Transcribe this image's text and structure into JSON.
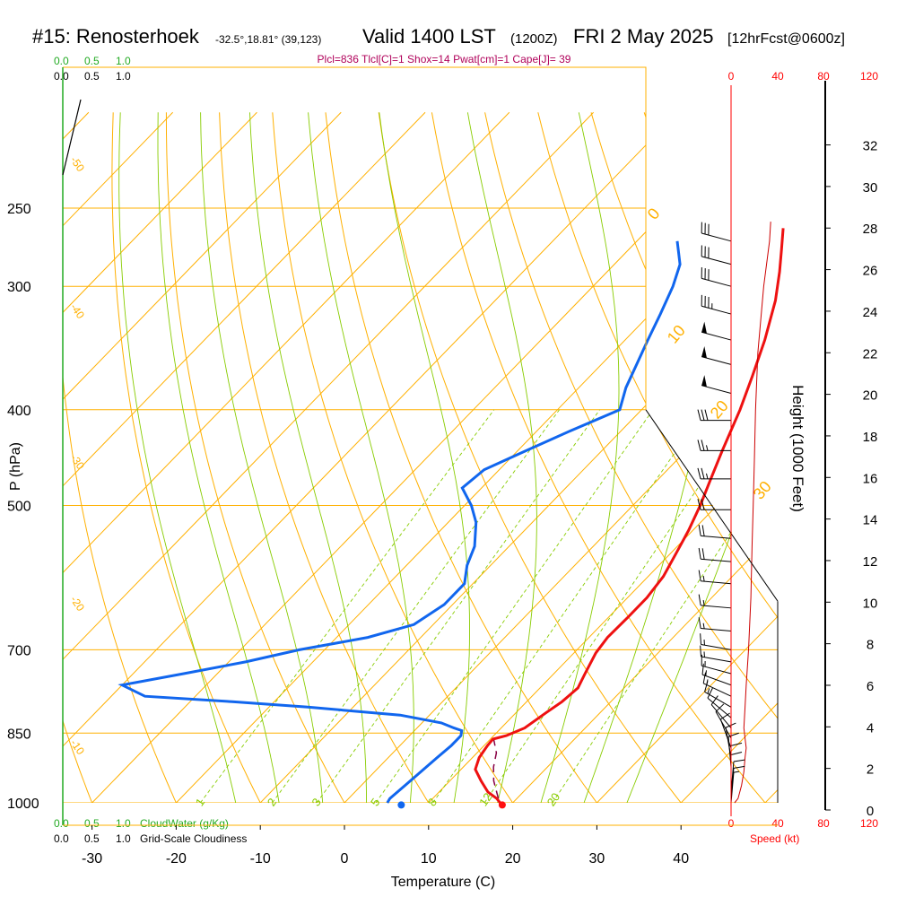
{
  "header": {
    "station": "#15: Renosterhoek",
    "location": "-32.5°,18.81° (39,123)",
    "valid": "Valid 1400 LST",
    "zulu": "(1200Z)",
    "date": "FRI 2 May 2025",
    "forecast": "[12hrFcst@0600z]",
    "indices": "Plcl=836 Tlcl[C]=1 Shox=14 Pwat[cm]=1 Cape[J]= 39"
  },
  "scales": {
    "cloudwater_ticks": [
      "0.0",
      "0.5",
      "1.0"
    ],
    "cloudiness_ticks": [
      "0.0",
      "0.5",
      "1.0"
    ],
    "cloudwater_label": "CloudWater (g/Kg)",
    "cloudiness_label": "Grid-Scale Cloudiness",
    "speed_ticks": [
      "0",
      "40",
      "80",
      "120"
    ],
    "speed_label": "Speed (kt)"
  },
  "colors": {
    "isotherm": "#ffb000",
    "dry_adiabat": "#ffb000",
    "moist_adiabat": "#88cc00",
    "mixing_ratio": "#88cc00",
    "temperature": "#ee1111",
    "dewpoint": "#1166ee",
    "parcel": "#880044",
    "wind_speed": "#cc0000"
  },
  "chart_data": {
    "type": "line",
    "title": "Valid 1400 LST (1200Z) FRI 2 May 2025",
    "xlabel": "Temperature (C)",
    "ylabel": "P (hPa)",
    "y2label": "Height (1000 Feet)",
    "x_ticks": [
      -30,
      -20,
      -10,
      0,
      10,
      20,
      30,
      40
    ],
    "xlim": [
      -33,
      46
    ],
    "p_ticks": [
      250,
      300,
      400,
      500,
      700,
      850,
      1000
    ],
    "height_ticks_kft": [
      0,
      2,
      4,
      6,
      8,
      10,
      12,
      14,
      16,
      18,
      20,
      22,
      24,
      26,
      28,
      30,
      32
    ],
    "isotherm_labels": [
      -50,
      -40,
      -30,
      -20,
      -10,
      0,
      10,
      20,
      30
    ],
    "mixing_ratio_labels": [
      1,
      2,
      3,
      5,
      8,
      12,
      20
    ],
    "surface_temperature": 19,
    "surface_dewpoint": 7,
    "series": [
      {
        "name": "Temperature",
        "points": [
          [
            1000,
            18.5
          ],
          [
            990,
            17.6
          ],
          [
            975,
            15.8
          ],
          [
            950,
            13.7
          ],
          [
            925,
            11.7
          ],
          [
            900,
            10.8
          ],
          [
            875,
            10.4
          ],
          [
            862,
            10.3
          ],
          [
            855,
            11.5
          ],
          [
            840,
            12.8
          ],
          [
            810,
            13.6
          ],
          [
            790,
            14.2
          ],
          [
            765,
            14.5
          ],
          [
            740,
            13.7
          ],
          [
            705,
            12.6
          ],
          [
            680,
            12.2
          ],
          [
            650,
            12.3
          ],
          [
            620,
            12.3
          ],
          [
            590,
            11.8
          ],
          [
            560,
            10.7
          ],
          [
            530,
            9.5
          ],
          [
            500,
            8.0
          ],
          [
            470,
            6.2
          ],
          [
            440,
            4.3
          ],
          [
            400,
            1.7
          ],
          [
            370,
            -0.7
          ],
          [
            340,
            -3.4
          ],
          [
            310,
            -6.7
          ],
          [
            290,
            -9.5
          ],
          [
            275,
            -11.9
          ],
          [
            262,
            -14.1
          ]
        ]
      },
      {
        "name": "Dewpoint",
        "points": [
          [
            1000,
            5.1
          ],
          [
            990,
            4.9
          ],
          [
            960,
            5.2
          ],
          [
            930,
            5.5
          ],
          [
            900,
            5.8
          ],
          [
            875,
            6.1
          ],
          [
            855,
            6.1
          ],
          [
            845,
            5.6
          ],
          [
            840,
            4.4
          ],
          [
            830,
            2.3
          ],
          [
            815,
            -3.5
          ],
          [
            800,
            -15.4
          ],
          [
            790,
            -25.0
          ],
          [
            780,
            -36.0
          ],
          [
            760,
            -40.0
          ],
          [
            740,
            -34.0
          ],
          [
            720,
            -28.0
          ],
          [
            700,
            -23.0
          ],
          [
            680,
            -16.3
          ],
          [
            660,
            -12.3
          ],
          [
            630,
            -11.0
          ],
          [
            600,
            -11.0
          ],
          [
            575,
            -12.8
          ],
          [
            550,
            -14.1
          ],
          [
            520,
            -16.7
          ],
          [
            500,
            -19.2
          ],
          [
            480,
            -22.3
          ],
          [
            460,
            -21.8
          ],
          [
            440,
            -19.0
          ],
          [
            420,
            -16.0
          ],
          [
            400,
            -12.6
          ],
          [
            380,
            -14.4
          ],
          [
            360,
            -15.8
          ],
          [
            340,
            -17.3
          ],
          [
            320,
            -18.8
          ],
          [
            300,
            -20.5
          ],
          [
            285,
            -22.2
          ],
          [
            270,
            -25.2
          ]
        ]
      },
      {
        "name": "Parcel",
        "points": [
          [
            990,
            17.8
          ],
          [
            950,
            15.2
          ],
          [
            920,
            13.6
          ],
          [
            890,
            12.3
          ],
          [
            862,
            10.4
          ]
        ]
      },
      {
        "name": "Wind Speed",
        "points": [
          [
            1000,
            3
          ],
          [
            990,
            6
          ],
          [
            960,
            9
          ],
          [
            930,
            11
          ],
          [
            900,
            12
          ],
          [
            880,
            13
          ],
          [
            860,
            12
          ],
          [
            840,
            11
          ],
          [
            800,
            12
          ],
          [
            760,
            13
          ],
          [
            700,
            15
          ],
          [
            620,
            17
          ],
          [
            550,
            18
          ],
          [
            500,
            19
          ],
          [
            450,
            20
          ],
          [
            400,
            21
          ],
          [
            350,
            23
          ],
          [
            300,
            28
          ],
          [
            270,
            33
          ],
          [
            258,
            34
          ]
        ]
      }
    ],
    "wind_barbs": [
      {
        "p": 270,
        "dir": 285,
        "spd": 30
      },
      {
        "p": 285,
        "dir": 285,
        "spd": 30
      },
      {
        "p": 300,
        "dir": 285,
        "spd": 30
      },
      {
        "p": 320,
        "dir": 285,
        "spd": 35
      },
      {
        "p": 340,
        "dir": 285,
        "spd": 50
      },
      {
        "p": 360,
        "dir": 285,
        "spd": 50
      },
      {
        "p": 385,
        "dir": 285,
        "spd": 50
      },
      {
        "p": 410,
        "dir": 270,
        "spd": 30
      },
      {
        "p": 440,
        "dir": 270,
        "spd": 25
      },
      {
        "p": 470,
        "dir": 270,
        "spd": 25
      },
      {
        "p": 505,
        "dir": 270,
        "spd": 20
      },
      {
        "p": 540,
        "dir": 275,
        "spd": 20
      },
      {
        "p": 570,
        "dir": 275,
        "spd": 20
      },
      {
        "p": 600,
        "dir": 275,
        "spd": 15
      },
      {
        "p": 635,
        "dir": 275,
        "spd": 15
      },
      {
        "p": 670,
        "dir": 275,
        "spd": 15
      },
      {
        "p": 700,
        "dir": 280,
        "spd": 15
      },
      {
        "p": 720,
        "dir": 280,
        "spd": 15
      },
      {
        "p": 740,
        "dir": 285,
        "spd": 15
      },
      {
        "p": 760,
        "dir": 290,
        "spd": 15
      },
      {
        "p": 780,
        "dir": 295,
        "spd": 15
      },
      {
        "p": 800,
        "dir": 300,
        "spd": 15
      },
      {
        "p": 820,
        "dir": 310,
        "spd": 10
      },
      {
        "p": 840,
        "dir": 320,
        "spd": 10
      },
      {
        "p": 860,
        "dir": 330,
        "spd": 10
      },
      {
        "p": 880,
        "dir": 340,
        "spd": 10
      },
      {
        "p": 900,
        "dir": 350,
        "spd": 10
      },
      {
        "p": 920,
        "dir": 355,
        "spd": 10
      },
      {
        "p": 940,
        "dir": 0,
        "spd": 10
      },
      {
        "p": 960,
        "dir": 0,
        "spd": 10
      },
      {
        "p": 975,
        "dir": 5,
        "spd": 10
      },
      {
        "p": 990,
        "dir": 5,
        "spd": 10
      },
      {
        "p": 1000,
        "dir": 5,
        "spd": 5
      }
    ]
  }
}
